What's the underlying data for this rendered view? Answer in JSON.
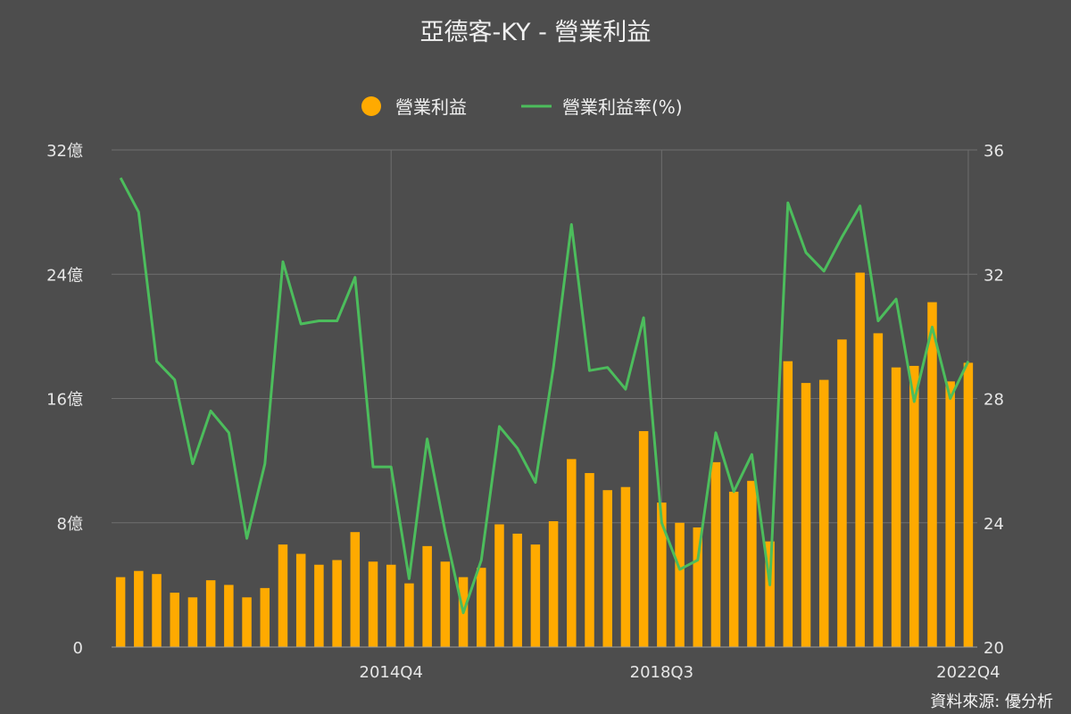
{
  "title": "亞德客-KY - 營業利益",
  "source": "資料來源: 優分析",
  "colors": {
    "background": "#4d4d4d",
    "bar": "#ffaa00",
    "line": "#4cbd5c",
    "grid": "#6e6e6e"
  },
  "chart_data": {
    "type": "bar",
    "legend": [
      "營業利益",
      "營業利益率(%)"
    ],
    "legend_placement": "top-center",
    "grid": true,
    "x_tick_labels": [
      "2014Q4",
      "2018Q3",
      "2022Q4"
    ],
    "y_left": {
      "ticks": [
        "0",
        "8億",
        "16億",
        "24億",
        "32億"
      ],
      "ylim": [
        0,
        32
      ]
    },
    "y_right": {
      "ticks": [
        "20",
        "24",
        "28",
        "32",
        "36"
      ],
      "ylim": [
        20,
        36
      ]
    },
    "series": [
      {
        "name": "營業利益",
        "type": "bar",
        "axis": "left",
        "values": [
          4.5,
          4.9,
          4.7,
          3.5,
          3.2,
          4.3,
          4.0,
          3.2,
          3.8,
          6.6,
          6.0,
          5.3,
          5.6,
          7.4,
          5.5,
          5.3,
          4.1,
          6.5,
          5.5,
          4.5,
          5.1,
          7.9,
          7.3,
          6.6,
          8.1,
          12.1,
          11.2,
          10.1,
          10.3,
          13.9,
          9.3,
          8.0,
          7.7,
          11.9,
          10.0,
          10.7,
          6.8,
          18.4,
          17.0,
          17.2,
          19.8,
          24.1,
          20.2,
          18.0,
          18.1,
          22.2,
          17.1,
          18.3
        ],
        "unit": "億"
      },
      {
        "name": "營業利益率(%)",
        "type": "line",
        "axis": "right",
        "values": [
          35.1,
          34.0,
          29.2,
          28.6,
          25.9,
          27.6,
          26.9,
          23.5,
          25.9,
          32.4,
          30.4,
          30.5,
          30.5,
          31.9,
          25.8,
          25.8,
          22.2,
          26.7,
          23.7,
          21.1,
          22.8,
          27.1,
          26.4,
          25.3,
          29.0,
          33.6,
          28.9,
          29.0,
          28.3,
          30.6,
          24.0,
          22.5,
          22.8,
          26.9,
          25.0,
          26.2,
          22.0,
          34.3,
          32.7,
          32.1,
          33.2,
          34.2,
          30.5,
          31.2,
          27.9,
          30.3,
          28.0,
          29.2
        ],
        "unit": "%"
      }
    ]
  }
}
